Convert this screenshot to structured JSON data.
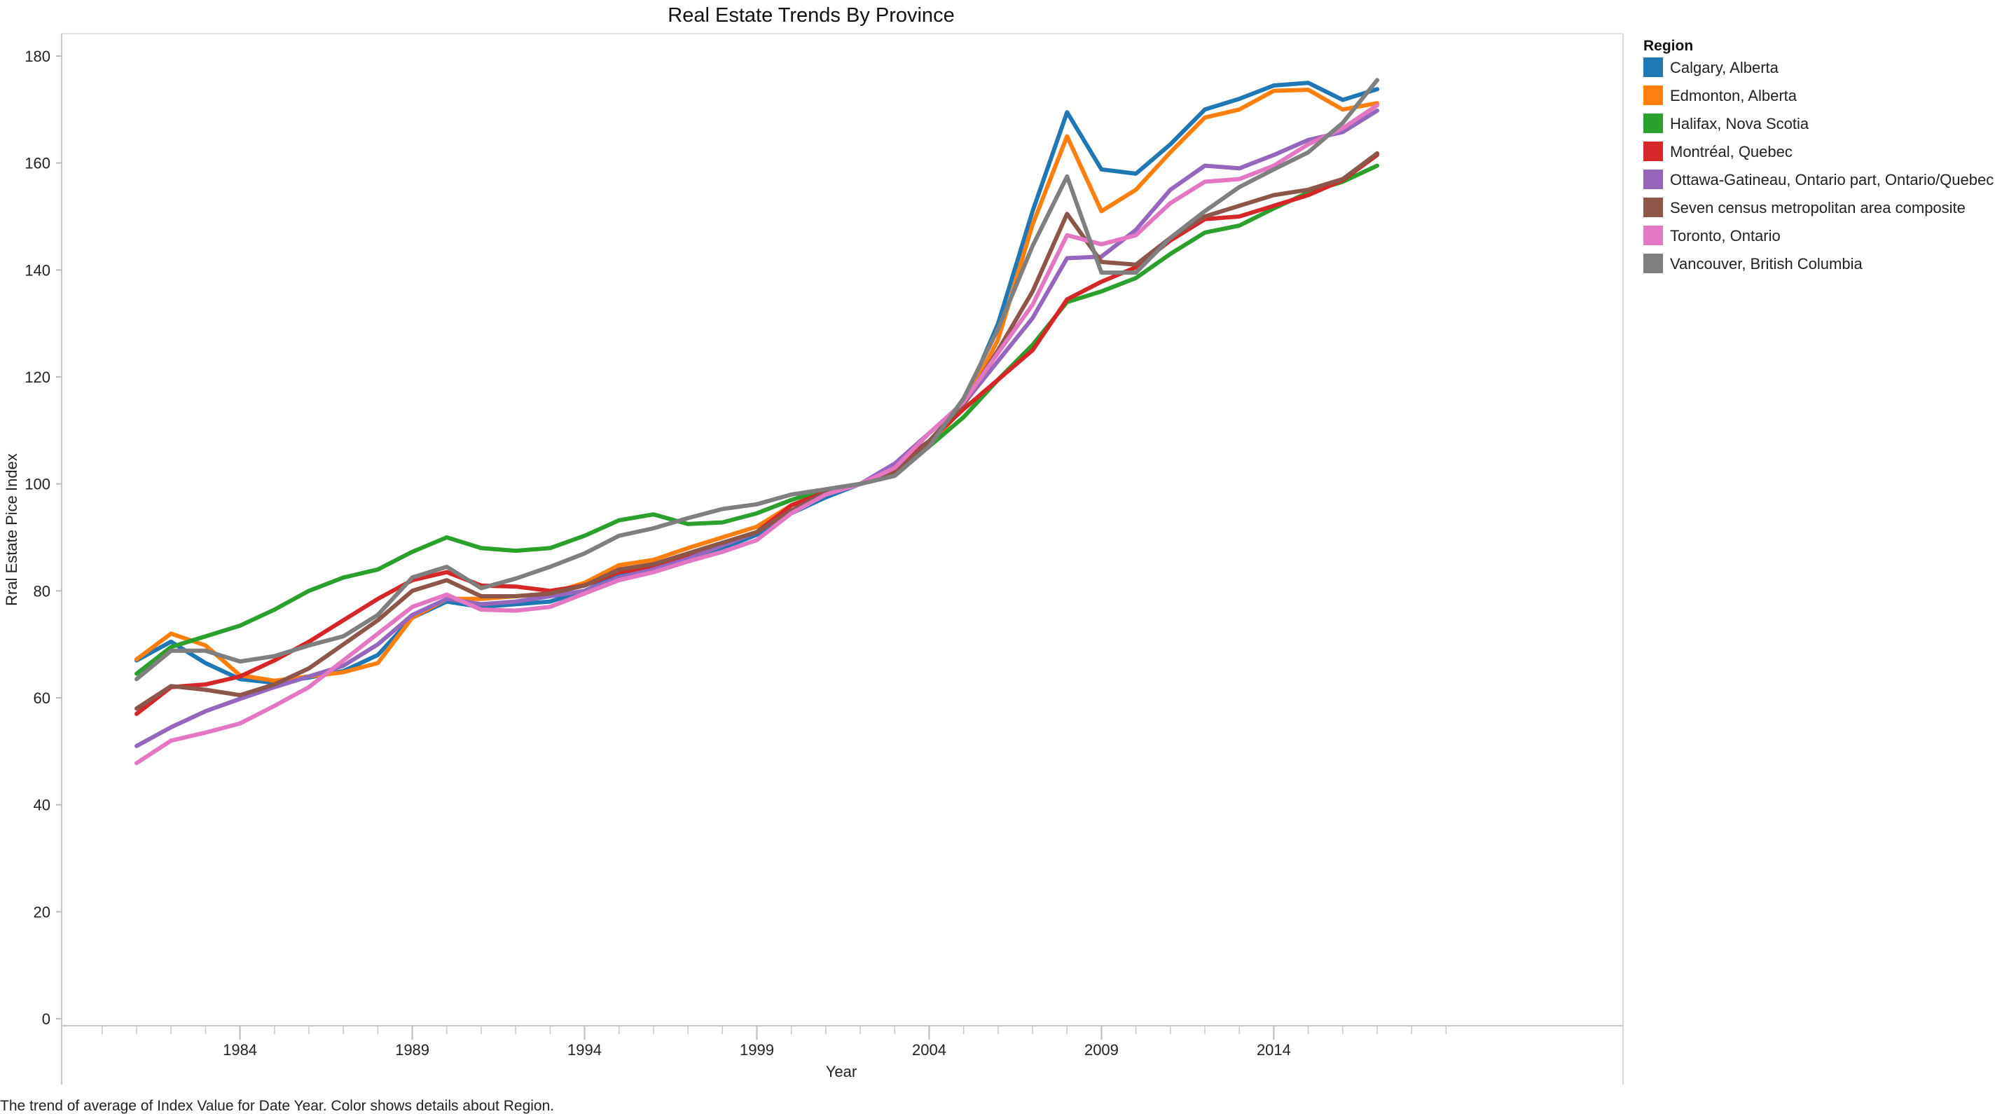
{
  "chart_data": {
    "type": "line",
    "title": "Real Estate Trends By Province",
    "xlabel": "Year",
    "ylabel": "Rral Estate Pice Index",
    "caption": "The trend of average of Index Value for Date Year.  Color shows details about Region.",
    "ylim": [
      0,
      185
    ],
    "xlim": [
      1979.5,
      2019.5
    ],
    "y_ticks": [
      "0",
      "20",
      "40",
      "60",
      "80",
      "100",
      "120",
      "140",
      "160",
      "180"
    ],
    "x_ticks": [
      "1984",
      "1989",
      "1994",
      "1999",
      "2004",
      "2009",
      "2014"
    ],
    "legend_title": "Region",
    "legend_position": "right",
    "grid": false,
    "x": [
      1981,
      1982,
      1983,
      1984,
      1985,
      1986,
      1987,
      1988,
      1989,
      1990,
      1991,
      1992,
      1993,
      1994,
      1995,
      1996,
      1997,
      1998,
      1999,
      2000,
      2001,
      2002,
      2003,
      2004,
      2005,
      2006,
      2007,
      2008,
      2009,
      2010,
      2011,
      2012,
      2013,
      2014,
      2015,
      2016,
      2017
    ],
    "series": [
      {
        "name": "Calgary, Alberta",
        "color": "#1f77b4",
        "values": [
          67,
          70.5,
          66.5,
          63.5,
          62.8,
          63.8,
          65,
          68,
          75,
          78,
          77,
          77.5,
          78,
          80,
          83,
          84,
          86,
          88,
          90.5,
          94.5,
          97.5,
          100,
          103.5,
          108,
          115,
          130,
          151,
          169.5,
          158.8,
          158,
          163.5,
          170,
          172,
          174.5,
          175,
          171.8,
          173.8
        ]
      },
      {
        "name": "Edmonton, Alberta",
        "color": "#ff7f0e",
        "values": [
          67.2,
          72,
          69.8,
          64.2,
          63.2,
          64,
          64.8,
          66.5,
          75,
          78.5,
          78.5,
          79,
          79.5,
          81.5,
          84.8,
          85.8,
          88,
          90,
          92,
          96,
          98.5,
          100,
          103,
          107,
          114.5,
          127,
          148.5,
          165,
          151,
          155,
          162,
          168.5,
          170,
          173.5,
          173.7,
          170,
          171.2
        ]
      },
      {
        "name": "Halifax, Nova Scotia",
        "color": "#2ca02c",
        "values": [
          64.5,
          69.5,
          71.5,
          73.5,
          76.5,
          80,
          82.5,
          84,
          87.3,
          90,
          88,
          87.5,
          88,
          90.3,
          93.2,
          94.3,
          92.5,
          92.8,
          94.5,
          97,
          99,
          100,
          102,
          107,
          112.5,
          119.5,
          126,
          134,
          136,
          138.5,
          143,
          147,
          148.3,
          151.5,
          154.5,
          156.5,
          159.5
        ]
      },
      {
        "name": "Montréal, Quebec",
        "color": "#d62728",
        "values": [
          57,
          62,
          62.5,
          64,
          67,
          70.5,
          74.5,
          78.5,
          82,
          83.5,
          81,
          80.8,
          80,
          81,
          83.5,
          84.5,
          86.5,
          88.5,
          91,
          96,
          98.5,
          100,
          102.8,
          108,
          114,
          119.5,
          125,
          134.5,
          137.8,
          140.5,
          145.5,
          149.5,
          150,
          152,
          154,
          156.8,
          161.5
        ]
      },
      {
        "name": "Ottawa-Gatineau, Ontario part, Ontario/Quebec",
        "color": "#9467bd",
        "values": [
          51,
          54.5,
          57.5,
          59.8,
          62,
          64,
          66,
          70,
          75.5,
          78.5,
          77.5,
          78,
          79,
          80,
          82.5,
          84,
          86,
          88.5,
          91,
          95,
          98,
          100,
          103.8,
          109.5,
          115,
          123,
          131,
          142.2,
          142.5,
          147.5,
          155,
          159.5,
          159,
          161.5,
          164.3,
          165.8,
          169.8
        ]
      },
      {
        "name": "Seven census metropolitan area composite",
        "color": "#8c564b",
        "values": [
          58,
          62.2,
          61.5,
          60.5,
          62.5,
          65.5,
          70,
          74.5,
          80,
          82,
          79,
          79,
          79.5,
          81,
          84,
          85,
          87,
          89,
          91,
          95,
          98.5,
          100,
          102,
          108,
          115,
          125,
          136,
          150.5,
          141.5,
          141,
          146,
          150,
          152,
          154,
          155,
          157,
          161.8
        ]
      },
      {
        "name": "Toronto, Ontario",
        "color": "#e377c2",
        "values": [
          47.8,
          52,
          53.5,
          55.2,
          58.5,
          62,
          67,
          72,
          77,
          79.3,
          76.5,
          76.3,
          77,
          79.5,
          82,
          83.5,
          85.5,
          87.3,
          89.5,
          94.5,
          98,
          100,
          103,
          109.5,
          115.3,
          124.5,
          133.5,
          146.5,
          144.8,
          146.5,
          152.5,
          156.5,
          157,
          159.5,
          163.5,
          166.5,
          170.8
        ]
      },
      {
        "name": "Vancouver, British Columbia",
        "color": "#7f7f7f",
        "values": [
          63.5,
          68.8,
          68.8,
          66.8,
          67.8,
          69.8,
          71.5,
          75.5,
          82.5,
          84.5,
          80.5,
          82.3,
          84.5,
          87,
          90.3,
          91.7,
          93.6,
          95.3,
          96.2,
          98,
          99,
          100,
          101.5,
          107,
          116,
          129,
          144.5,
          157.5,
          139.5,
          139.5,
          146,
          151,
          155.5,
          158.8,
          162,
          167.5,
          175.5
        ]
      }
    ]
  }
}
